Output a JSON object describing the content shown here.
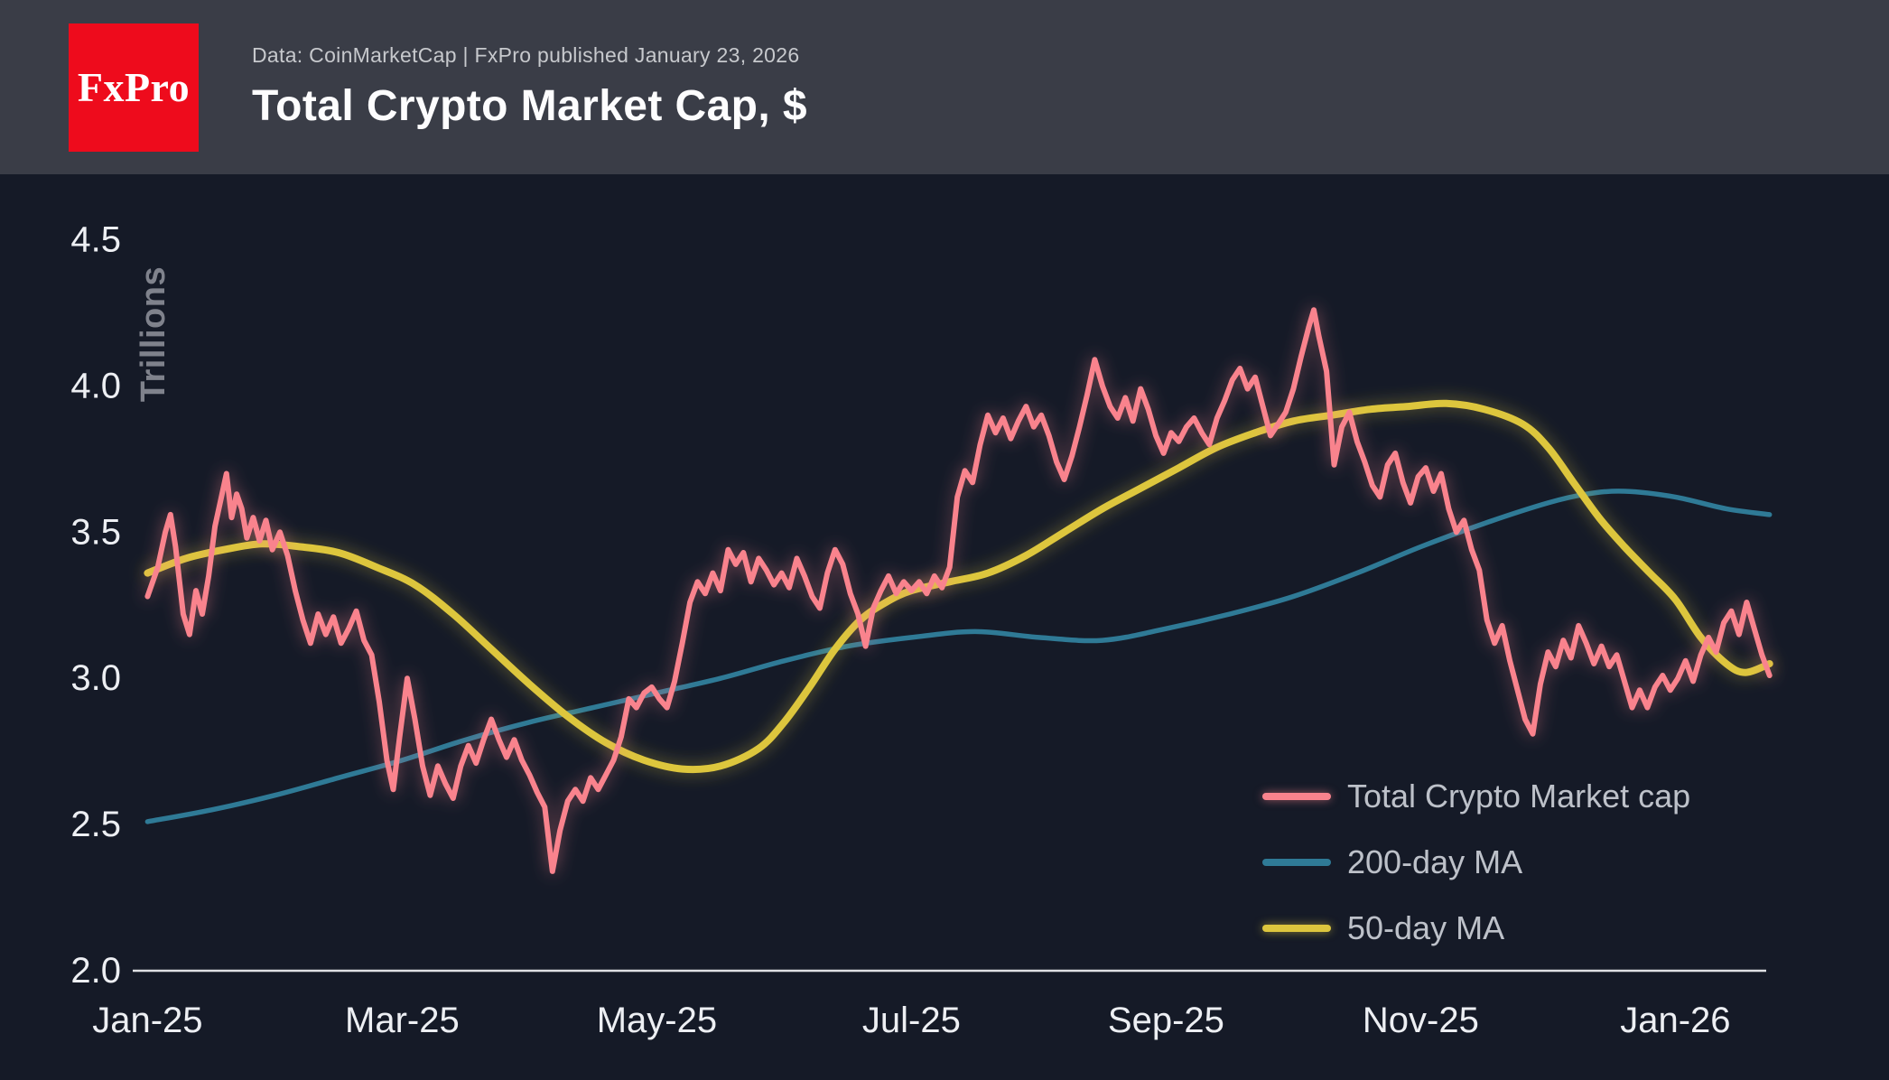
{
  "header": {
    "logo_text": "FxPro",
    "source_line": "Data: CoinMarketCap | FxPro published January 23, 2026",
    "title": "Total Crypto Market Cap, $"
  },
  "legend": {
    "items": [
      {
        "label": "Total Crypto Market cap",
        "color": "#f9838d",
        "glow": true
      },
      {
        "label": "200-day MA",
        "color": "#2f7a96",
        "glow": false
      },
      {
        "label": "50-day MA",
        "color": "#ddc63e",
        "glow": true
      }
    ]
  },
  "chart_data": {
    "type": "line",
    "title": "Total Crypto Market Cap, $",
    "xlabel": "",
    "ylabel": "Trillions",
    "x_unit": "months since 2025-01-01",
    "xlim": [
      0,
      12.75
    ],
    "ylim": [
      2.0,
      4.5
    ],
    "grid": false,
    "legend_position": "bottom-right",
    "y_ticks": [
      4.5,
      4.0,
      3.5,
      3.0,
      2.5,
      2.0
    ],
    "x_ticks": {
      "positions": [
        0,
        2,
        4,
        6,
        8,
        10,
        12
      ],
      "labels": [
        "Jan-25",
        "Mar-25",
        "May-25",
        "Jul-25",
        "Sep-25",
        "Nov-25",
        "Jan-26"
      ]
    },
    "series": [
      {
        "name": "Total Crypto Market cap",
        "color": "#f9838d",
        "glow": true,
        "smooth": false,
        "points": [
          [
            0.0,
            3.28
          ],
          [
            0.08,
            3.38
          ],
          [
            0.14,
            3.5
          ],
          [
            0.18,
            3.56
          ],
          [
            0.22,
            3.45
          ],
          [
            0.28,
            3.22
          ],
          [
            0.33,
            3.15
          ],
          [
            0.38,
            3.3
          ],
          [
            0.43,
            3.22
          ],
          [
            0.48,
            3.35
          ],
          [
            0.53,
            3.52
          ],
          [
            0.58,
            3.62
          ],
          [
            0.62,
            3.7
          ],
          [
            0.66,
            3.55
          ],
          [
            0.7,
            3.63
          ],
          [
            0.74,
            3.58
          ],
          [
            0.78,
            3.48
          ],
          [
            0.83,
            3.55
          ],
          [
            0.88,
            3.47
          ],
          [
            0.93,
            3.54
          ],
          [
            0.98,
            3.44
          ],
          [
            1.04,
            3.5
          ],
          [
            1.1,
            3.42
          ],
          [
            1.16,
            3.3
          ],
          [
            1.22,
            3.2
          ],
          [
            1.28,
            3.12
          ],
          [
            1.34,
            3.22
          ],
          [
            1.4,
            3.15
          ],
          [
            1.46,
            3.21
          ],
          [
            1.52,
            3.12
          ],
          [
            1.58,
            3.17
          ],
          [
            1.64,
            3.23
          ],
          [
            1.7,
            3.13
          ],
          [
            1.76,
            3.08
          ],
          [
            1.82,
            2.92
          ],
          [
            1.88,
            2.72
          ],
          [
            1.93,
            2.62
          ],
          [
            1.98,
            2.8
          ],
          [
            2.04,
            3.0
          ],
          [
            2.1,
            2.86
          ],
          [
            2.16,
            2.7
          ],
          [
            2.22,
            2.6
          ],
          [
            2.28,
            2.7
          ],
          [
            2.34,
            2.64
          ],
          [
            2.4,
            2.59
          ],
          [
            2.46,
            2.7
          ],
          [
            2.52,
            2.77
          ],
          [
            2.58,
            2.71
          ],
          [
            2.64,
            2.79
          ],
          [
            2.7,
            2.86
          ],
          [
            2.76,
            2.79
          ],
          [
            2.82,
            2.73
          ],
          [
            2.88,
            2.79
          ],
          [
            2.94,
            2.72
          ],
          [
            3.0,
            2.67
          ],
          [
            3.06,
            2.61
          ],
          [
            3.12,
            2.56
          ],
          [
            3.18,
            2.34
          ],
          [
            3.24,
            2.48
          ],
          [
            3.3,
            2.58
          ],
          [
            3.36,
            2.62
          ],
          [
            3.42,
            2.58
          ],
          [
            3.48,
            2.66
          ],
          [
            3.54,
            2.62
          ],
          [
            3.6,
            2.67
          ],
          [
            3.66,
            2.72
          ],
          [
            3.72,
            2.8
          ],
          [
            3.78,
            2.93
          ],
          [
            3.84,
            2.9
          ],
          [
            3.9,
            2.95
          ],
          [
            3.96,
            2.97
          ],
          [
            4.02,
            2.93
          ],
          [
            4.08,
            2.9
          ],
          [
            4.14,
            2.99
          ],
          [
            4.2,
            3.12
          ],
          [
            4.26,
            3.26
          ],
          [
            4.32,
            3.33
          ],
          [
            4.38,
            3.29
          ],
          [
            4.44,
            3.36
          ],
          [
            4.5,
            3.3
          ],
          [
            4.56,
            3.44
          ],
          [
            4.62,
            3.39
          ],
          [
            4.68,
            3.43
          ],
          [
            4.74,
            3.33
          ],
          [
            4.8,
            3.41
          ],
          [
            4.86,
            3.37
          ],
          [
            4.92,
            3.32
          ],
          [
            4.98,
            3.36
          ],
          [
            5.04,
            3.31
          ],
          [
            5.1,
            3.41
          ],
          [
            5.16,
            3.35
          ],
          [
            5.22,
            3.28
          ],
          [
            5.28,
            3.24
          ],
          [
            5.34,
            3.36
          ],
          [
            5.4,
            3.44
          ],
          [
            5.46,
            3.39
          ],
          [
            5.52,
            3.29
          ],
          [
            5.58,
            3.22
          ],
          [
            5.64,
            3.11
          ],
          [
            5.7,
            3.24
          ],
          [
            5.76,
            3.3
          ],
          [
            5.82,
            3.35
          ],
          [
            5.88,
            3.29
          ],
          [
            5.94,
            3.33
          ],
          [
            6.0,
            3.3
          ],
          [
            6.06,
            3.33
          ],
          [
            6.12,
            3.29
          ],
          [
            6.18,
            3.35
          ],
          [
            6.24,
            3.31
          ],
          [
            6.3,
            3.38
          ],
          [
            6.36,
            3.62
          ],
          [
            6.42,
            3.71
          ],
          [
            6.48,
            3.67
          ],
          [
            6.54,
            3.8
          ],
          [
            6.6,
            3.9
          ],
          [
            6.66,
            3.84
          ],
          [
            6.72,
            3.89
          ],
          [
            6.78,
            3.82
          ],
          [
            6.84,
            3.88
          ],
          [
            6.9,
            3.93
          ],
          [
            6.96,
            3.86
          ],
          [
            7.02,
            3.9
          ],
          [
            7.08,
            3.83
          ],
          [
            7.14,
            3.74
          ],
          [
            7.2,
            3.68
          ],
          [
            7.26,
            3.76
          ],
          [
            7.32,
            3.86
          ],
          [
            7.38,
            3.97
          ],
          [
            7.44,
            4.09
          ],
          [
            7.5,
            4.0
          ],
          [
            7.56,
            3.93
          ],
          [
            7.62,
            3.89
          ],
          [
            7.68,
            3.96
          ],
          [
            7.74,
            3.88
          ],
          [
            7.8,
            3.99
          ],
          [
            7.86,
            3.92
          ],
          [
            7.92,
            3.83
          ],
          [
            7.98,
            3.77
          ],
          [
            8.04,
            3.84
          ],
          [
            8.1,
            3.81
          ],
          [
            8.16,
            3.86
          ],
          [
            8.22,
            3.89
          ],
          [
            8.28,
            3.84
          ],
          [
            8.34,
            3.8
          ],
          [
            8.4,
            3.89
          ],
          [
            8.46,
            3.95
          ],
          [
            8.52,
            4.02
          ],
          [
            8.58,
            4.06
          ],
          [
            8.64,
            3.99
          ],
          [
            8.7,
            4.03
          ],
          [
            8.76,
            3.93
          ],
          [
            8.82,
            3.83
          ],
          [
            8.88,
            3.87
          ],
          [
            8.94,
            3.91
          ],
          [
            9.0,
            3.99
          ],
          [
            9.06,
            4.1
          ],
          [
            9.12,
            4.2
          ],
          [
            9.16,
            4.26
          ],
          [
            9.2,
            4.17
          ],
          [
            9.26,
            4.05
          ],
          [
            9.32,
            3.73
          ],
          [
            9.38,
            3.86
          ],
          [
            9.44,
            3.91
          ],
          [
            9.5,
            3.81
          ],
          [
            9.56,
            3.74
          ],
          [
            9.62,
            3.66
          ],
          [
            9.68,
            3.62
          ],
          [
            9.74,
            3.73
          ],
          [
            9.8,
            3.77
          ],
          [
            9.86,
            3.67
          ],
          [
            9.92,
            3.6
          ],
          [
            9.98,
            3.69
          ],
          [
            10.04,
            3.72
          ],
          [
            10.1,
            3.64
          ],
          [
            10.16,
            3.7
          ],
          [
            10.22,
            3.58
          ],
          [
            10.28,
            3.5
          ],
          [
            10.34,
            3.54
          ],
          [
            10.4,
            3.44
          ],
          [
            10.46,
            3.37
          ],
          [
            10.52,
            3.2
          ],
          [
            10.58,
            3.12
          ],
          [
            10.64,
            3.18
          ],
          [
            10.7,
            3.06
          ],
          [
            10.76,
            2.96
          ],
          [
            10.82,
            2.86
          ],
          [
            10.88,
            2.81
          ],
          [
            10.94,
            2.98
          ],
          [
            11.0,
            3.09
          ],
          [
            11.06,
            3.04
          ],
          [
            11.12,
            3.13
          ],
          [
            11.18,
            3.07
          ],
          [
            11.24,
            3.18
          ],
          [
            11.3,
            3.12
          ],
          [
            11.36,
            3.05
          ],
          [
            11.42,
            3.11
          ],
          [
            11.48,
            3.04
          ],
          [
            11.54,
            3.08
          ],
          [
            11.6,
            2.99
          ],
          [
            11.66,
            2.9
          ],
          [
            11.72,
            2.96
          ],
          [
            11.78,
            2.9
          ],
          [
            11.84,
            2.97
          ],
          [
            11.9,
            3.01
          ],
          [
            11.96,
            2.96
          ],
          [
            12.02,
            3.0
          ],
          [
            12.08,
            3.06
          ],
          [
            12.14,
            2.99
          ],
          [
            12.2,
            3.08
          ],
          [
            12.26,
            3.14
          ],
          [
            12.32,
            3.09
          ],
          [
            12.38,
            3.19
          ],
          [
            12.44,
            3.23
          ],
          [
            12.5,
            3.15
          ],
          [
            12.56,
            3.26
          ],
          [
            12.62,
            3.17
          ],
          [
            12.68,
            3.08
          ],
          [
            12.74,
            3.01
          ]
        ]
      },
      {
        "name": "200-day MA",
        "color": "#2f7a96",
        "glow": false,
        "smooth": true,
        "points": [
          [
            0.0,
            2.51
          ],
          [
            0.5,
            2.55
          ],
          [
            1.0,
            2.6
          ],
          [
            1.5,
            2.66
          ],
          [
            2.0,
            2.72
          ],
          [
            2.5,
            2.79
          ],
          [
            3.0,
            2.85
          ],
          [
            3.5,
            2.9
          ],
          [
            4.0,
            2.95
          ],
          [
            4.5,
            3.0
          ],
          [
            5.0,
            3.06
          ],
          [
            5.5,
            3.11
          ],
          [
            6.0,
            3.14
          ],
          [
            6.5,
            3.16
          ],
          [
            7.0,
            3.14
          ],
          [
            7.5,
            3.13
          ],
          [
            8.0,
            3.17
          ],
          [
            8.5,
            3.22
          ],
          [
            9.0,
            3.28
          ],
          [
            9.5,
            3.36
          ],
          [
            10.0,
            3.45
          ],
          [
            10.5,
            3.53
          ],
          [
            11.0,
            3.6
          ],
          [
            11.3,
            3.63
          ],
          [
            11.6,
            3.64
          ],
          [
            12.0,
            3.62
          ],
          [
            12.4,
            3.58
          ],
          [
            12.74,
            3.56
          ]
        ]
      },
      {
        "name": "50-day MA",
        "color": "#ddc63e",
        "glow": true,
        "smooth": true,
        "points": [
          [
            0.0,
            3.36
          ],
          [
            0.3,
            3.41
          ],
          [
            0.6,
            3.44
          ],
          [
            0.9,
            3.46
          ],
          [
            1.2,
            3.45
          ],
          [
            1.5,
            3.43
          ],
          [
            1.8,
            3.38
          ],
          [
            2.1,
            3.32
          ],
          [
            2.4,
            3.22
          ],
          [
            2.7,
            3.1
          ],
          [
            3.0,
            2.98
          ],
          [
            3.3,
            2.87
          ],
          [
            3.6,
            2.78
          ],
          [
            3.9,
            2.72
          ],
          [
            4.2,
            2.69
          ],
          [
            4.5,
            2.7
          ],
          [
            4.8,
            2.76
          ],
          [
            5.0,
            2.85
          ],
          [
            5.2,
            2.97
          ],
          [
            5.4,
            3.1
          ],
          [
            5.6,
            3.2
          ],
          [
            5.8,
            3.26
          ],
          [
            6.0,
            3.3
          ],
          [
            6.3,
            3.33
          ],
          [
            6.6,
            3.36
          ],
          [
            6.9,
            3.42
          ],
          [
            7.2,
            3.5
          ],
          [
            7.5,
            3.58
          ],
          [
            7.8,
            3.65
          ],
          [
            8.1,
            3.72
          ],
          [
            8.4,
            3.79
          ],
          [
            8.7,
            3.84
          ],
          [
            9.0,
            3.88
          ],
          [
            9.3,
            3.9
          ],
          [
            9.6,
            3.92
          ],
          [
            9.9,
            3.93
          ],
          [
            10.2,
            3.94
          ],
          [
            10.5,
            3.92
          ],
          [
            10.8,
            3.87
          ],
          [
            11.0,
            3.79
          ],
          [
            11.2,
            3.67
          ],
          [
            11.4,
            3.55
          ],
          [
            11.6,
            3.45
          ],
          [
            11.8,
            3.36
          ],
          [
            12.0,
            3.27
          ],
          [
            12.2,
            3.14
          ],
          [
            12.4,
            3.05
          ],
          [
            12.55,
            3.02
          ],
          [
            12.74,
            3.05
          ]
        ]
      }
    ]
  }
}
